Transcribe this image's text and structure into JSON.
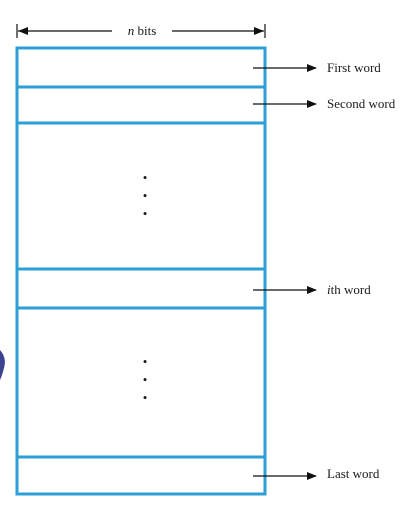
{
  "diagram": {
    "width_label_prefix": "n",
    "width_label_suffix": " bits",
    "words": [
      {
        "prefix": "",
        "text": "First word"
      },
      {
        "prefix": "",
        "text": "Second word"
      },
      {
        "prefix": "i",
        "text": "th word"
      },
      {
        "prefix": "",
        "text": "Last word"
      }
    ],
    "ellipsis": [
      "•",
      "•",
      "•"
    ],
    "colors": {
      "memory_border": "#2b9fd6",
      "arrows": "#111111",
      "left_fragment": "#1a237e"
    }
  }
}
